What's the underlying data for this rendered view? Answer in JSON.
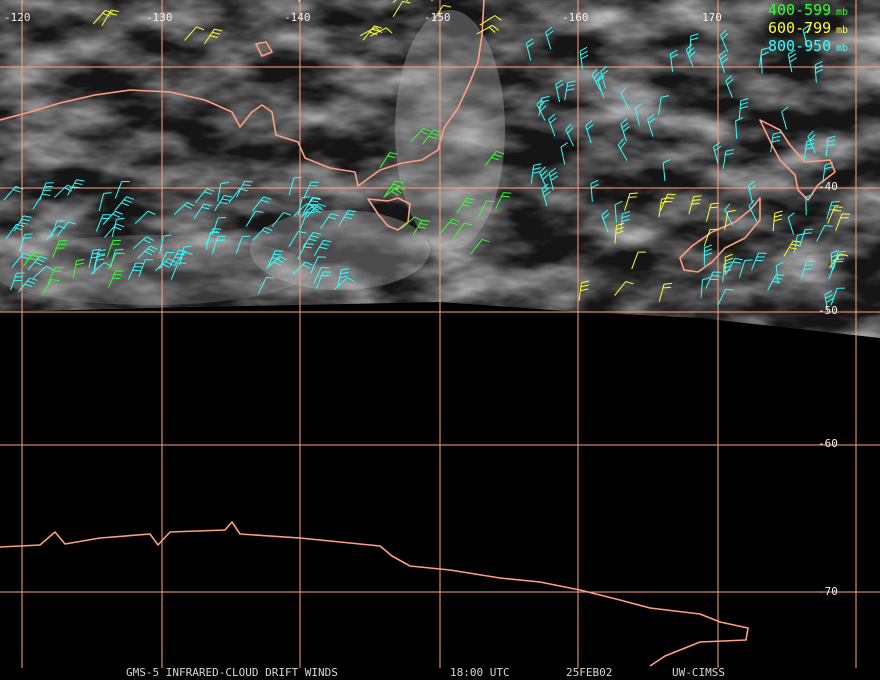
{
  "map": {
    "longitudes": [
      "-120",
      "-130",
      "-140",
      "-150",
      "-160",
      "170"
    ],
    "latitudes": [
      "-40",
      "-50",
      "-60",
      "-70"
    ],
    "legend": [
      {
        "label": "400-599",
        "unit": "mb",
        "color": "#33ff33"
      },
      {
        "label": "600-799",
        "unit": "mb",
        "color": "#ffff33"
      },
      {
        "label": "800-950",
        "unit": "mb",
        "color": "#33ffff"
      }
    ],
    "footer": {
      "product": "GMS-5 INFRARED-CLOUD DRIFT WINDS",
      "time": "18:00 UTC",
      "date": "25FEB02",
      "source": "UW-CIMSS"
    }
  }
}
